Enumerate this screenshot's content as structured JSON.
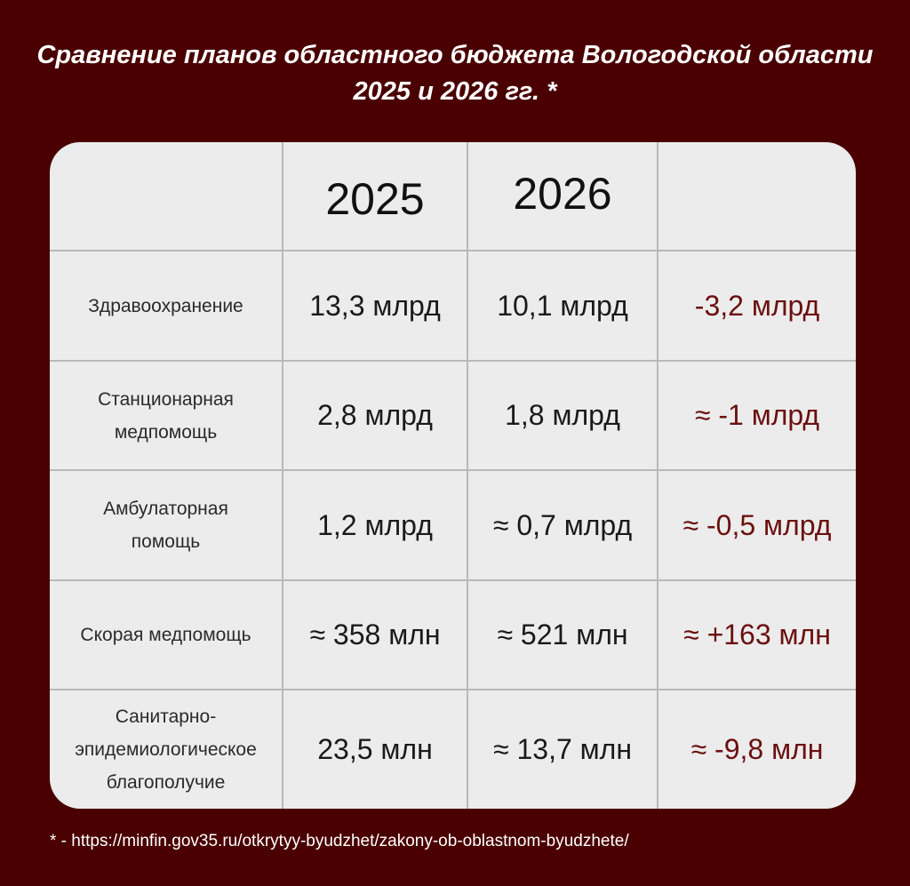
{
  "title": {
    "line1": "Сравнение планов областного бюджета Вологодской области",
    "line2": "2025 и 2026 гг. *"
  },
  "table": {
    "headers": [
      "",
      "2025",
      "2026",
      ""
    ],
    "rows": [
      {
        "label": "Здравоохранение",
        "v2025": "13,3 млрд",
        "v2026": "10,1 млрд",
        "diff": "-3,2 млрд"
      },
      {
        "label": "Станционарная медпомощь",
        "v2025": "2,8 млрд",
        "v2026": "1,8 млрд",
        "diff": "≈ -1 млрд"
      },
      {
        "label": "Амбулаторная помощь",
        "v2025": "1,2 млрд",
        "v2026": "≈ 0,7 млрд",
        "diff": "≈ -0,5 млрд"
      },
      {
        "label": "Скорая медпомощь",
        "v2025": "≈ 358 млн",
        "v2026": "≈ 521 млн",
        "diff": "≈ +163 млн"
      },
      {
        "label": "Санитарно-эпидемиологическое благополучие",
        "v2025": "23,5 млн",
        "v2026": "≈ 13,7 млн",
        "diff": "≈ -9,8 млн"
      }
    ]
  },
  "footnote": "* - https://minfin.gov35.ru/otkrytyy-byudzhet/zakony-ob-oblastnom-byudzhete/",
  "colors": {
    "background": "#4a0000",
    "card": "#ececec",
    "difference_text": "#6b0f0f"
  }
}
